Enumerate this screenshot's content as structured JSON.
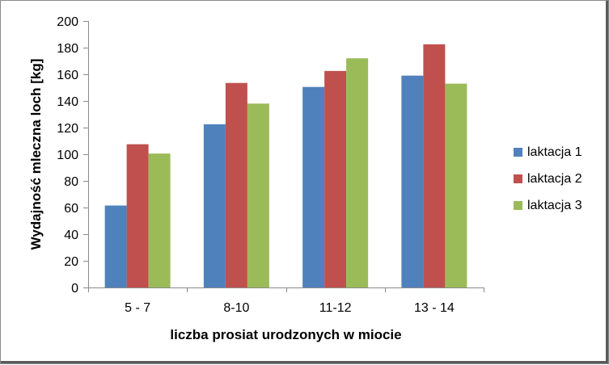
{
  "chart_data": {
    "type": "bar",
    "categories": [
      "5 - 7",
      "8-10",
      "11-12",
      "13 - 14"
    ],
    "series": [
      {
        "name": "laktacja 1",
        "values": [
          61.5,
          122.5,
          150.5,
          159.0
        ],
        "color": "#4f81bd"
      },
      {
        "name": "laktacja 2",
        "values": [
          107.5,
          153.5,
          162.5,
          182.5
        ],
        "color": "#c0504d"
      },
      {
        "name": "laktacja 3",
        "values": [
          100.5,
          138.0,
          172.0,
          153.0
        ],
        "color": "#9bbb59"
      }
    ],
    "xlabel": "liczba prosiat urodzonych w miocie",
    "ylabel": "Wydajność mleczna loch [kg]",
    "ylim": [
      0,
      200
    ],
    "yticks": [
      0,
      20,
      40,
      60,
      80,
      100,
      120,
      140,
      160,
      180,
      200
    ],
    "grid": false,
    "legend": "right"
  }
}
